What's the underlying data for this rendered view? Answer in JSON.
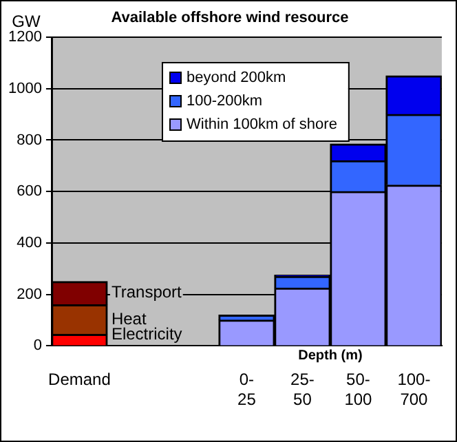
{
  "chart_data": {
    "type": "bar",
    "title": "Available offshore wind resource",
    "ylabel": "GW",
    "xlabel": "Depth (m)",
    "stacked": true,
    "grid": "y",
    "legend": "top",
    "categories": [
      "Demand",
      null,
      null,
      "0-25",
      "25-50",
      "50-100",
      "100-700"
    ],
    "ylim": [
      0,
      1200
    ],
    "yticks": [
      0,
      200,
      400,
      600,
      800,
      1000,
      1200
    ],
    "series": [
      {
        "name": "Electricity",
        "color": "#ff0000",
        "values": [
          45,
          null,
          null,
          null,
          null,
          null,
          null
        ]
      },
      {
        "name": "Heat",
        "color": "#993300",
        "values": [
          115,
          null,
          null,
          null,
          null,
          null,
          null
        ]
      },
      {
        "name": "Transport",
        "color": "#800000",
        "values": [
          90,
          null,
          null,
          null,
          null,
          null,
          null
        ]
      },
      {
        "name": "Within 100km of shore",
        "color": "#9999ff",
        "values": [
          null,
          null,
          null,
          100,
          225,
          600,
          625
        ]
      },
      {
        "name": "100-200km",
        "color": "#3366ff",
        "values": [
          null,
          null,
          null,
          20,
          45,
          120,
          275
        ]
      },
      {
        "name": "beyond 200km",
        "color": "#0000ee",
        "values": [
          null,
          null,
          null,
          null,
          5,
          65,
          150
        ]
      }
    ]
  }
}
